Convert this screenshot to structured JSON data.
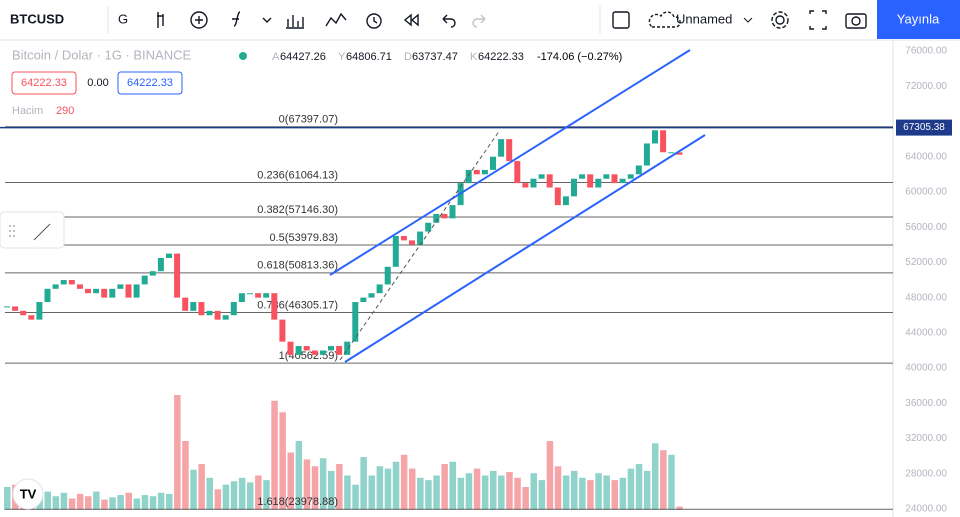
{
  "toolbar": {
    "symbol": "BTCUSD",
    "interval": "G",
    "layout_name": "Unnamed",
    "publish": "Yayınla"
  },
  "legend": {
    "title": "Bitcoin / Dolar · 1G · BINANCE",
    "ohlc": [
      {
        "key": "A",
        "value": "64427.26"
      },
      {
        "key": "Y",
        "value": "64806.71"
      },
      {
        "key": "D",
        "value": "63737.47"
      },
      {
        "key": "K",
        "value": "64222.33"
      }
    ],
    "change": "-174.06 (−0.27%)",
    "sell": "64222.33",
    "spread": "0.00",
    "buy": "64222.33",
    "volume_label": "Hacim",
    "volume_value": "290"
  },
  "chart_data": {
    "type": "candlestick",
    "ylim": [
      23092,
      77249
    ],
    "yticks": [
      {
        "value": 76000,
        "label": "76000.00"
      },
      {
        "value": 72000,
        "label": "72000.00"
      },
      {
        "value": 64000,
        "label": "64000.00"
      },
      {
        "value": 60000,
        "label": "60000.00"
      },
      {
        "value": 56000,
        "label": "56000.00"
      },
      {
        "value": 52000,
        "label": "52000.00"
      },
      {
        "value": 48000,
        "label": "48000.00"
      },
      {
        "value": 44000,
        "label": "44000.00"
      },
      {
        "value": 40000,
        "label": "40000.00"
      },
      {
        "value": 36000,
        "label": "36000.00"
      },
      {
        "value": 32000,
        "label": "32000.00"
      },
      {
        "value": 28000,
        "label": "28000.00"
      },
      {
        "value": 24000,
        "label": "24000.00"
      }
    ],
    "price_line": {
      "value": 67305.38,
      "label": "67305.38",
      "color": "#1e3a8a"
    },
    "fib_levels": [
      {
        "label": "0(67397.07)",
        "value": 67397.07
      },
      {
        "label": "0.236(61064.13)",
        "value": 61064.13
      },
      {
        "label": "0.382(57146.30)",
        "value": 57146.3
      },
      {
        "label": "0.5(53979.83)",
        "value": 53979.83
      },
      {
        "label": "0.618(50813.36)",
        "value": 50813.36
      },
      {
        "label": "0.786(46305.17)",
        "value": 46305.17
      },
      {
        "label": "1(40562.59)",
        "value": 40562.59
      },
      {
        "label": "1.618(23978.88)",
        "value": 23978.88
      }
    ],
    "up_color": "#22ab94",
    "down_color": "#f7525f",
    "close": [
      47000,
      46500,
      46000,
      45500,
      47500,
      49000,
      49500,
      50000,
      49500,
      49000,
      48500,
      49000,
      48000,
      49000,
      49500,
      48000,
      49500,
      50500,
      51000,
      52500,
      53000,
      48000,
      46500,
      47500,
      46000,
      46500,
      45500,
      46000,
      47500,
      48500,
      48500,
      48000,
      48500,
      45500,
      43000,
      41500,
      42500,
      42000,
      41500,
      42000,
      42500,
      41500,
      43000,
      47500,
      48000,
      48500,
      49500,
      51500,
      55000,
      54500,
      54000,
      55500,
      56500,
      57500,
      57000,
      58500,
      61000,
      62500,
      62000,
      62500,
      64000,
      66000,
      63500,
      61000,
      60500,
      61500,
      62000,
      60500,
      58500,
      59500,
      61500,
      62000,
      60500,
      61500,
      62000,
      61000,
      61500,
      62000,
      63000,
      65500,
      67000,
      64500,
      64500,
      64222.33
    ],
    "volume": [
      20,
      22,
      21,
      18,
      14,
      16,
      12,
      15,
      10,
      14,
      12,
      16,
      9,
      11,
      13,
      15,
      10,
      13,
      12,
      15,
      14,
      100,
      60,
      35,
      40,
      28,
      18,
      22,
      25,
      28,
      24,
      30,
      26,
      95,
      85,
      50,
      60,
      44,
      38,
      45,
      34,
      40,
      30,
      22,
      46,
      30,
      38,
      36,
      42,
      48,
      36,
      28,
      26,
      30,
      40,
      42,
      28,
      32,
      36,
      30,
      34,
      30,
      33,
      28,
      20,
      32,
      26,
      60,
      38,
      30,
      34,
      28,
      26,
      32,
      30,
      26,
      28,
      36,
      40,
      34,
      58,
      52,
      48,
      3
    ]
  }
}
